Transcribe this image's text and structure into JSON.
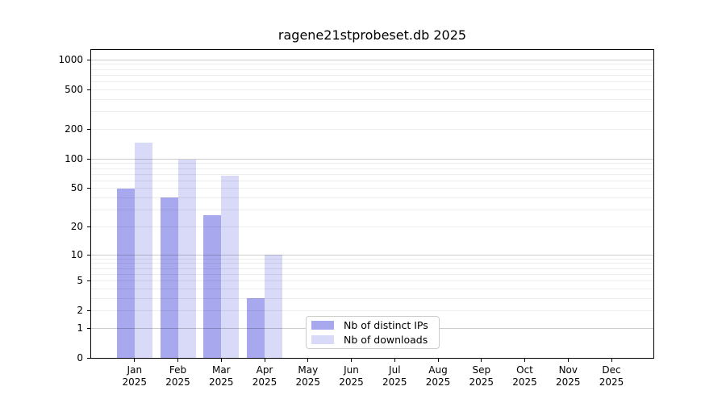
{
  "chart_data": {
    "type": "bar",
    "title": "ragene21stprobeset.db 2025",
    "x_months": [
      "Jan",
      "Feb",
      "Mar",
      "Apr",
      "May",
      "Jun",
      "Jul",
      "Aug",
      "Sep",
      "Oct",
      "Nov",
      "Dec"
    ],
    "x_year": "2025",
    "series": [
      {
        "name": "Nb of distinct IPs",
        "color": "#a8a8ee",
        "values": [
          49,
          40,
          26,
          3,
          0,
          0,
          0,
          0,
          0,
          0,
          0,
          0
        ]
      },
      {
        "name": "Nb of downloads",
        "color": "#d9d9f8",
        "values": [
          146,
          97,
          67,
          10,
          0,
          0,
          0,
          0,
          0,
          0,
          0,
          0
        ]
      }
    ],
    "yscale": "log1p",
    "yticks": [
      0,
      1,
      2,
      5,
      10,
      20,
      50,
      100,
      200,
      500,
      1000
    ],
    "ylim": [
      0,
      1250
    ],
    "grid": true,
    "legend_position": "lower-center"
  },
  "colors": {
    "axis": "#000000",
    "grid_major": "rgba(0,0,0,0.20)",
    "grid_minor": "rgba(0,0,0,0.07)",
    "legend_border": "#cccccc",
    "background": "#ffffff"
  }
}
